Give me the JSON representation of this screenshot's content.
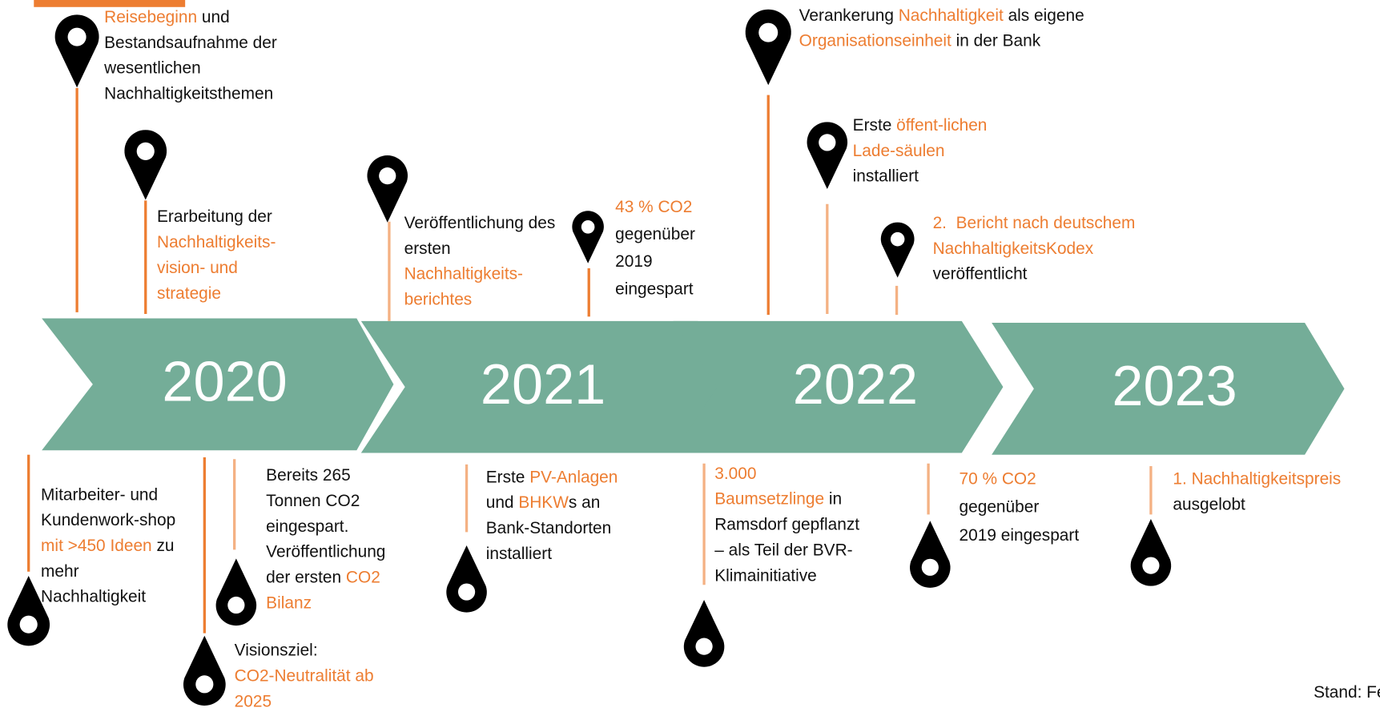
{
  "years": [
    "2020",
    "2021",
    "2022",
    "2023"
  ],
  "events": [
    {
      "lines": [
        [
          {
            "text": "Reisebeginn",
            "highlight": true
          },
          {
            "text": " und"
          }
        ],
        [
          {
            "text": "Bestandsaufnahme der"
          }
        ],
        [
          {
            "text": "wesentlichen"
          }
        ],
        [
          {
            "text": "Nachhaltigkeitsthemen"
          }
        ]
      ]
    },
    {
      "lines": [
        [
          {
            "text": "Erarbeitung der"
          }
        ],
        [
          {
            "text": "Nachhaltigkeits-",
            "highlight": true
          }
        ],
        [
          {
            "text": "vision- und",
            "highlight": true
          }
        ],
        [
          {
            "text": "strategie",
            "highlight": true
          }
        ]
      ]
    },
    {
      "lines": [
        [
          {
            "text": "Veröffentlichung des"
          }
        ],
        [
          {
            "text": "ersten"
          }
        ],
        [
          {
            "text": "Nachhaltigkeits-",
            "highlight": true
          }
        ],
        [
          {
            "text": "berichtes",
            "highlight": true
          }
        ]
      ]
    },
    {
      "lines": [
        [
          {
            "text": "43 % CO2",
            "highlight": true
          }
        ],
        [
          {
            "text": "gegenüber"
          }
        ],
        [
          {
            "text": "2019"
          }
        ],
        [
          {
            "text": "eingespart"
          }
        ]
      ]
    },
    {
      "lines": [
        [
          {
            "text": "Verankerung "
          },
          {
            "text": "Nachhaltigkeit",
            "highlight": true
          },
          {
            "text": " als eigene"
          }
        ],
        [
          {
            "text": "Organisationseinheit",
            "highlight": true
          },
          {
            "text": " in der Bank"
          }
        ]
      ]
    },
    {
      "lines": [
        [
          {
            "text": "Erste "
          },
          {
            "text": "öffent-lichen",
            "highlight": true
          }
        ],
        [
          {
            "text": "Lade-säulen",
            "highlight": true
          }
        ],
        [
          {
            "text": "installiert"
          }
        ]
      ]
    },
    {
      "lines": [
        [
          {
            "text": "2.  Bericht nach deutschem",
            "highlight": true
          }
        ],
        [
          {
            "text": "NachhaltigkeitsKodex",
            "highlight": true
          }
        ],
        [
          {
            "text": "veröffentlicht"
          }
        ]
      ]
    },
    {
      "lines": [
        [
          {
            "text": "Mitarbeiter- und"
          }
        ],
        [
          {
            "text": "Kundenwork-shop"
          }
        ],
        [
          {
            "text": "mit >450 Ideen",
            "highlight": true
          },
          {
            "text": " zu"
          }
        ],
        [
          {
            "text": "mehr"
          }
        ],
        [
          {
            "text": "Nachhaltigkeit"
          }
        ]
      ]
    },
    {
      "lines": [
        [
          {
            "text": "Visionsziel:"
          }
        ],
        [
          {
            "text": "CO2-Neutralität ab",
            "highlight": true
          }
        ],
        [
          {
            "text": "2025",
            "highlight": true
          }
        ]
      ]
    },
    {
      "lines": [
        [
          {
            "text": "Bereits 265"
          }
        ],
        [
          {
            "text": "Tonnen CO2"
          }
        ],
        [
          {
            "text": "eingespart."
          }
        ],
        [
          {
            "text": "Veröffentlichung"
          }
        ],
        [
          {
            "text": "der ersten "
          },
          {
            "text": "CO2",
            "highlight": true
          }
        ],
        [
          {
            "text": "Bilanz",
            "highlight": true
          }
        ]
      ]
    },
    {
      "lines": [
        [
          {
            "text": "Erste "
          },
          {
            "text": "PV-Anlagen",
            "highlight": true
          }
        ],
        [
          {
            "text": "und "
          },
          {
            "text": "BHKW",
            "highlight": true
          },
          {
            "text": "s an"
          }
        ],
        [
          {
            "text": "Bank-Standorten"
          }
        ],
        [
          {
            "text": "installiert"
          }
        ]
      ]
    },
    {
      "lines": [
        [
          {
            "text": "3.000",
            "highlight": true
          }
        ],
        [
          {
            "text": "Baumsetzlinge",
            "highlight": true
          },
          {
            "text": " in"
          }
        ],
        [
          {
            "text": "Ramsdorf gepflanzt"
          }
        ],
        [
          {
            "text": "– als Teil der BVR-"
          }
        ],
        [
          {
            "text": "Klimainitiative"
          }
        ]
      ]
    },
    {
      "lines": [
        [
          {
            "text": "70 % CO2",
            "highlight": true
          }
        ],
        [
          {
            "text": "gegenüber"
          }
        ],
        [
          {
            "text": "2019 eingespart"
          }
        ]
      ]
    },
    {
      "lines": [
        [
          {
            "text": "1. Nachhaltigkeitspreis",
            "highlight": true
          }
        ],
        [
          {
            "text": "ausgelobt"
          }
        ]
      ]
    }
  ],
  "footer": "Stand: Fe"
}
